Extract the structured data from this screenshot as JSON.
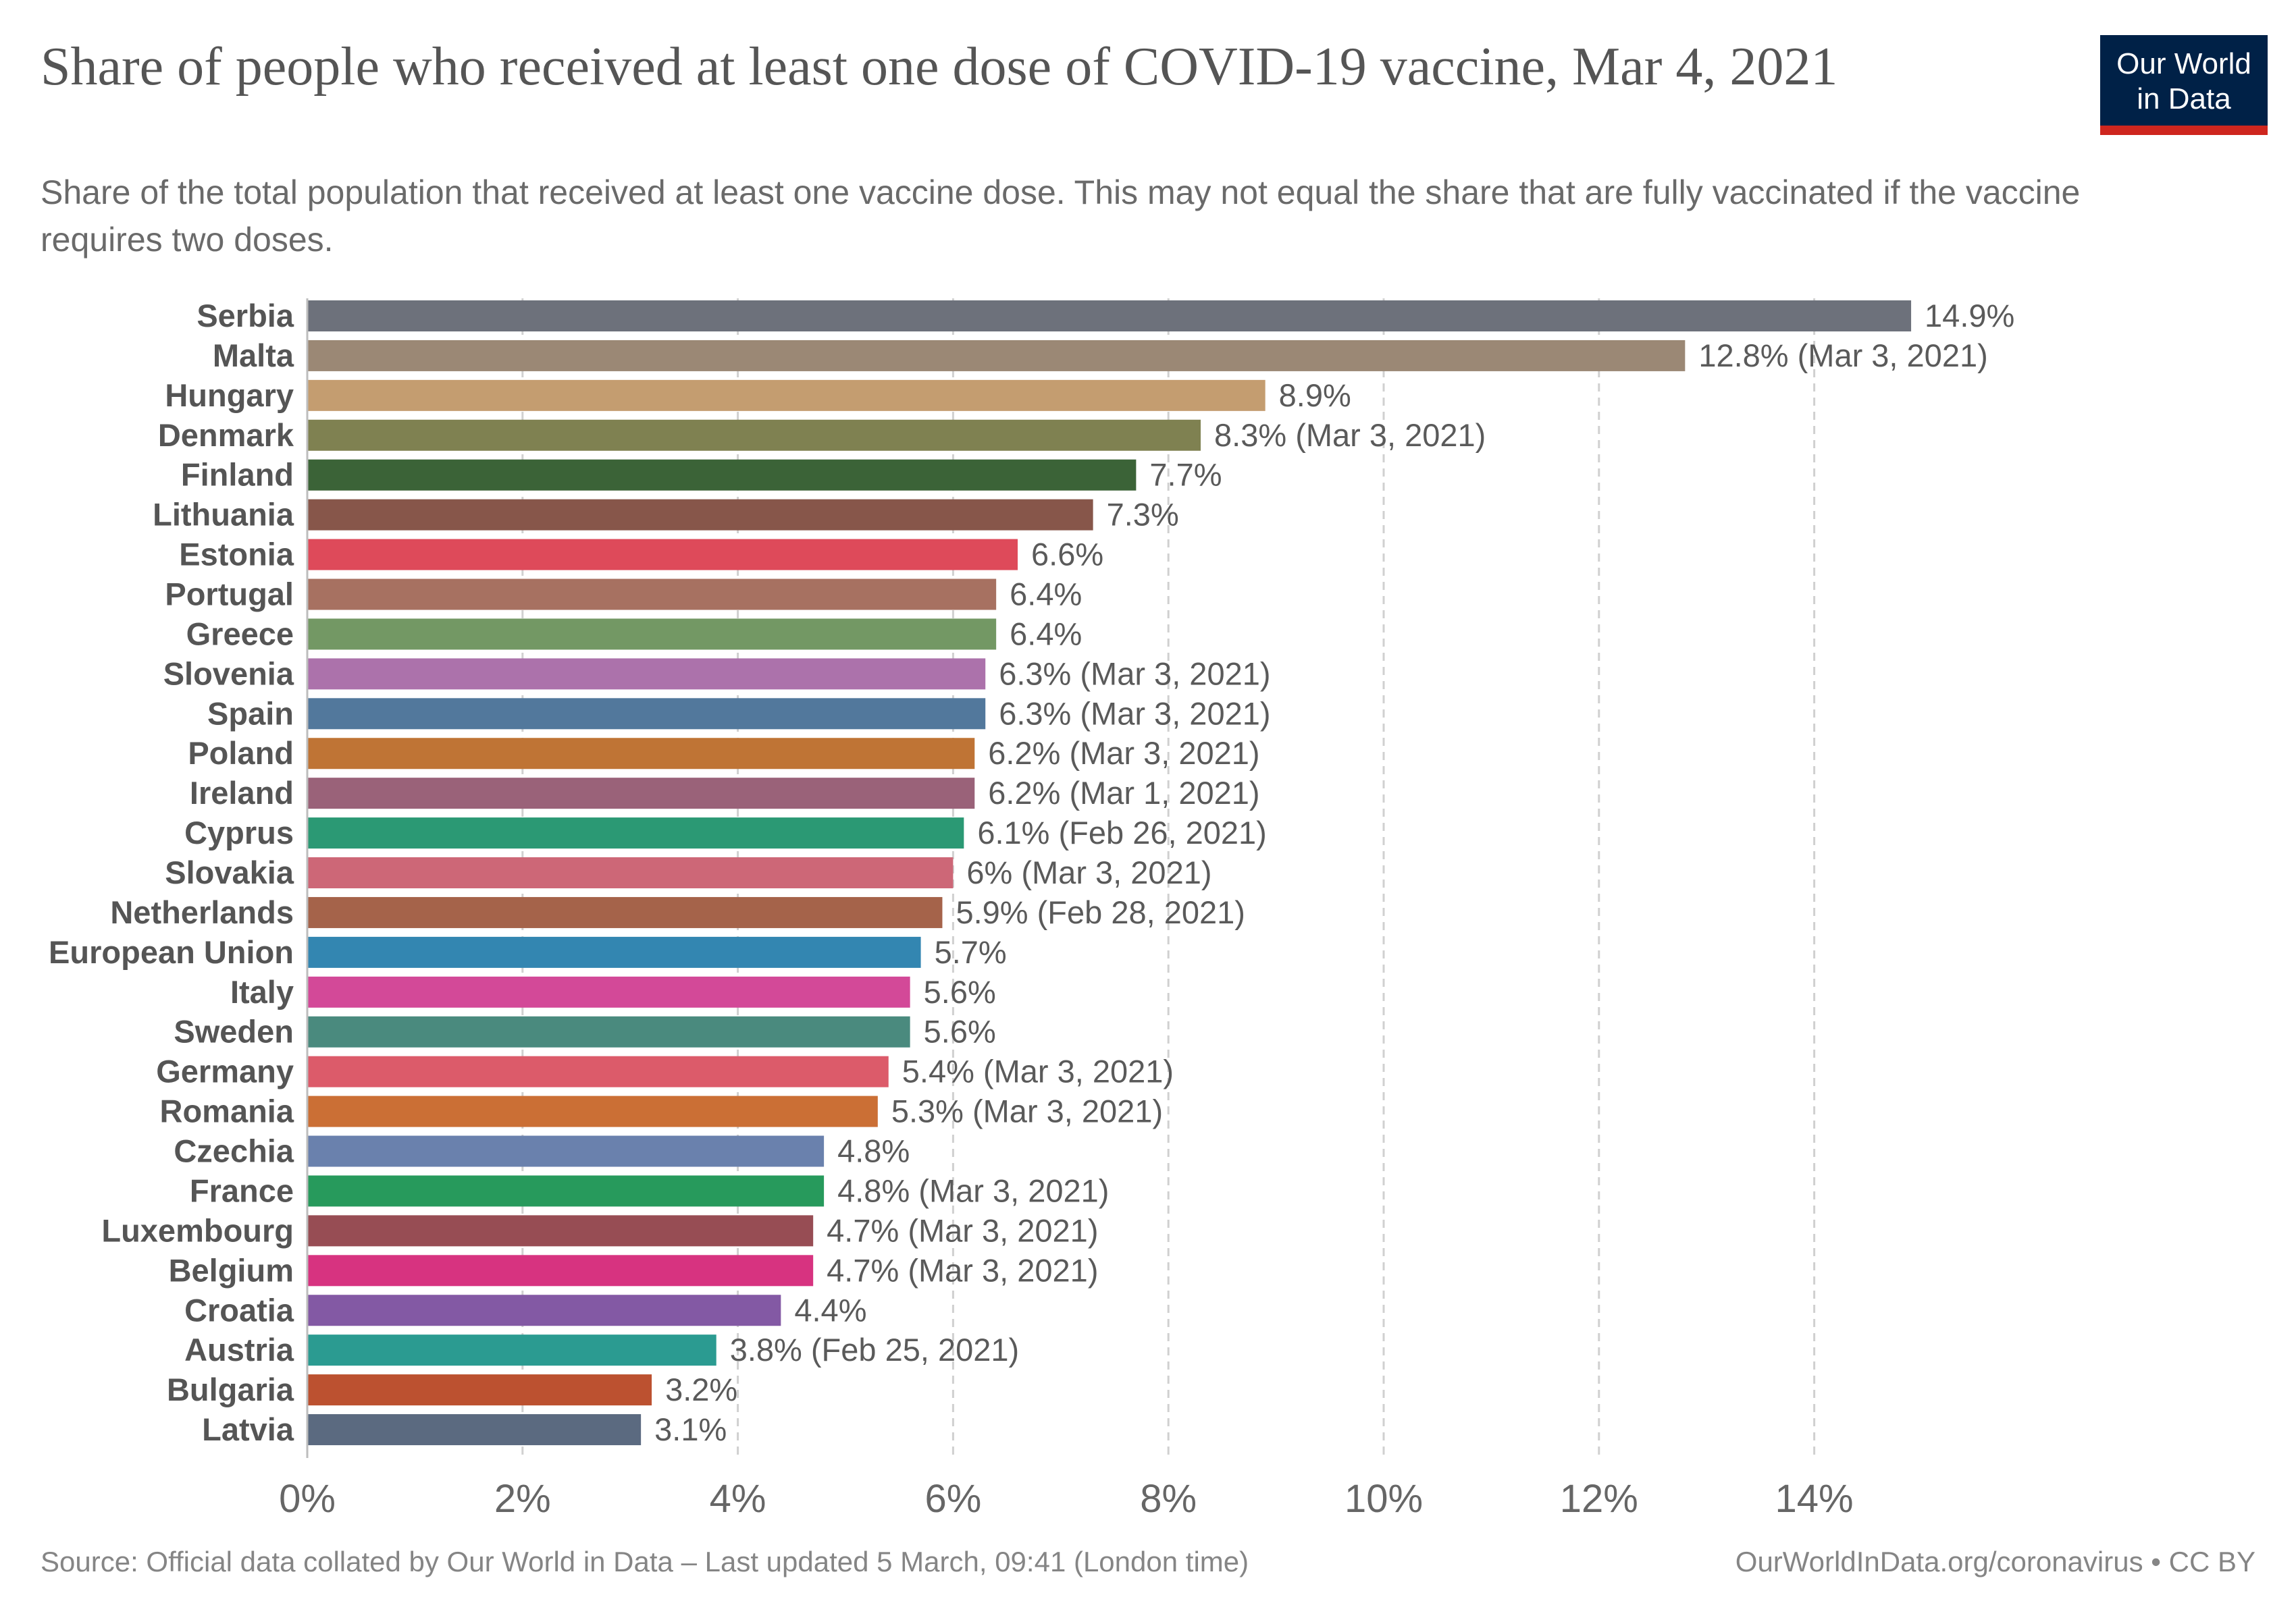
{
  "header": {
    "title": "Share of people who received at least one dose of COVID-19 vaccine, Mar 4, 2021",
    "subtitle": "Share of the total population that received at least one vaccine dose. This may not equal the share that are fully vaccinated if the vaccine requires two doses.",
    "logo_line1": "Our World",
    "logo_line2": "in Data"
  },
  "footer": {
    "source": "Source: Official data collated by Our World in Data – Last updated 5 March, 09:41 (London time)",
    "credit": "OurWorldInData.org/coronavirus • CC BY"
  },
  "colors": {
    "logo_bg": "#002147",
    "logo_accent": "#ce261e",
    "label": "#555555",
    "value_label": "#5a5a5a"
  },
  "chart_data": {
    "type": "bar",
    "orientation": "horizontal",
    "categories": [
      "Serbia",
      "Malta",
      "Hungary",
      "Denmark",
      "Finland",
      "Lithuania",
      "Estonia",
      "Portugal",
      "Greece",
      "Slovenia",
      "Spain",
      "Poland",
      "Ireland",
      "Cyprus",
      "Slovakia",
      "Netherlands",
      "European Union",
      "Italy",
      "Sweden",
      "Germany",
      "Romania",
      "Czechia",
      "France",
      "Luxembourg",
      "Belgium",
      "Croatia",
      "Austria",
      "Bulgaria",
      "Latvia"
    ],
    "values": [
      14.9,
      12.8,
      8.9,
      8.3,
      7.7,
      7.3,
      6.6,
      6.4,
      6.4,
      6.3,
      6.3,
      6.2,
      6.2,
      6.1,
      6.0,
      5.9,
      5.7,
      5.6,
      5.6,
      5.4,
      5.3,
      4.8,
      4.8,
      4.7,
      4.7,
      4.4,
      3.8,
      3.2,
      3.1
    ],
    "value_labels": [
      "14.9%",
      "12.8% (Mar 3, 2021)",
      "8.9%",
      "8.3% (Mar 3, 2021)",
      "7.7%",
      "7.3%",
      "6.6%",
      "6.4%",
      "6.4%",
      "6.3% (Mar 3, 2021)",
      "6.3% (Mar 3, 2021)",
      "6.2% (Mar 3, 2021)",
      "6.2% (Mar 1, 2021)",
      "6.1% (Feb 26, 2021)",
      "6% (Mar 3, 2021)",
      "5.9% (Feb 28, 2021)",
      "5.7%",
      "5.6%",
      "5.6%",
      "5.4% (Mar 3, 2021)",
      "5.3% (Mar 3, 2021)",
      "4.8%",
      "4.8% (Mar 3, 2021)",
      "4.7% (Mar 3, 2021)",
      "4.7% (Mar 3, 2021)",
      "4.4%",
      "3.8% (Feb 25, 2021)",
      "3.2%",
      "3.1%"
    ],
    "bar_colors": [
      "#6d717b",
      "#9b8875",
      "#c49d70",
      "#7f8151",
      "#3b6337",
      "#87564a",
      "#de4a5a",
      "#a77161",
      "#739864",
      "#ac72ab",
      "#52789c",
      "#bf7435",
      "#9a6279",
      "#2b9974",
      "#cd6777",
      "#a5634a",
      "#3386b1",
      "#d34998",
      "#4a8a7e",
      "#dc5b6a",
      "#cb6f35",
      "#6a81ad",
      "#279a5c",
      "#974d54",
      "#d73380",
      "#8359a4",
      "#2b9b91",
      "#bc5130",
      "#5b6a80"
    ],
    "xlim": [
      0,
      16
    ],
    "xticks": [
      0,
      2,
      4,
      6,
      8,
      10,
      12,
      14
    ],
    "xtick_labels": [
      "0%",
      "2%",
      "4%",
      "6%",
      "8%",
      "10%",
      "12%",
      "14%"
    ],
    "grid": "vertical dashed",
    "legend": "none"
  }
}
